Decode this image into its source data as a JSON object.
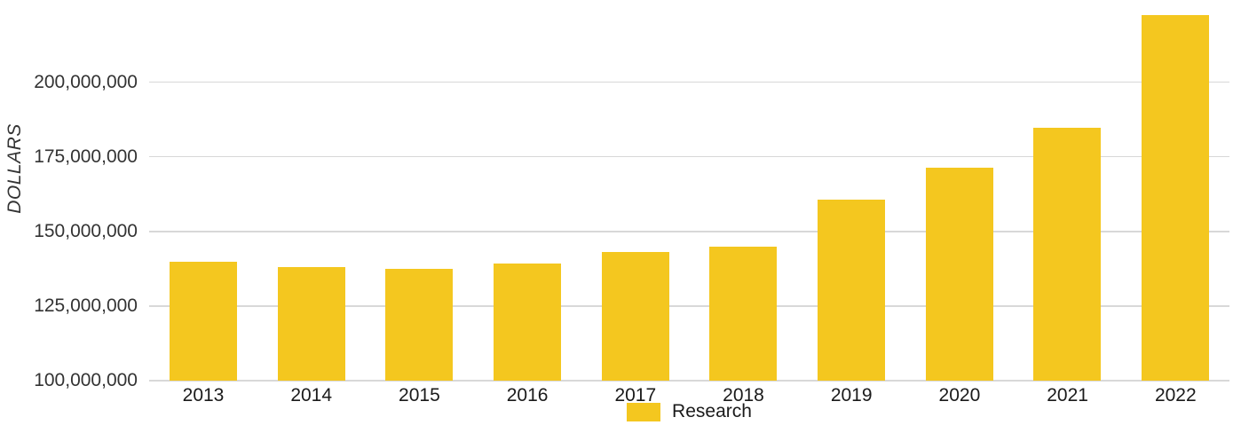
{
  "chart_data": {
    "type": "bar",
    "title": "",
    "xlabel": "",
    "ylabel": "DOLLARS",
    "categories": [
      "2013",
      "2014",
      "2015",
      "2016",
      "2017",
      "2018",
      "2019",
      "2020",
      "2021",
      "2022"
    ],
    "series": [
      {
        "name": "Research",
        "values": [
          139700000,
          137900000,
          137500000,
          139300000,
          143100000,
          145000000,
          160700000,
          171400000,
          184700000,
          222500000
        ]
      }
    ],
    "ylim": [
      100000000,
      225000000
    ],
    "yticks": [
      100000000,
      125000000,
      150000000,
      175000000,
      200000000
    ],
    "ytick_labels": [
      "100,000,000",
      "125,000,000",
      "150,000,000",
      "175,000,000",
      "200,000,000"
    ],
    "grid": "horizontal",
    "legend_position": "bottom-center",
    "colors": {
      "bar": "#F4C71F",
      "gridline": "#D8D8D8",
      "axis_text": "#333333",
      "category_text": "#1A1A1A"
    }
  }
}
